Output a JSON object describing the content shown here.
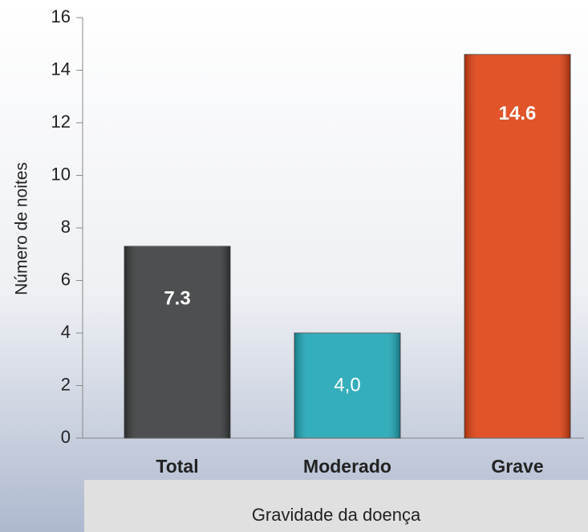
{
  "chart_data": {
    "type": "bar",
    "categories": [
      "Total",
      "Moderado",
      "Grave"
    ],
    "values": [
      7.3,
      4.0,
      14.6
    ],
    "value_labels": [
      "7.3",
      "4,0",
      "14.6"
    ],
    "colors": [
      "#353738",
      "#1aa3b3",
      "#dd3d0d"
    ],
    "ylabel": "Número de noites",
    "xlabel": "Gravidade da doença",
    "ylim": [
      0,
      16
    ],
    "yticks": [
      0,
      2,
      4,
      6,
      8,
      10,
      12,
      14,
      16
    ]
  }
}
